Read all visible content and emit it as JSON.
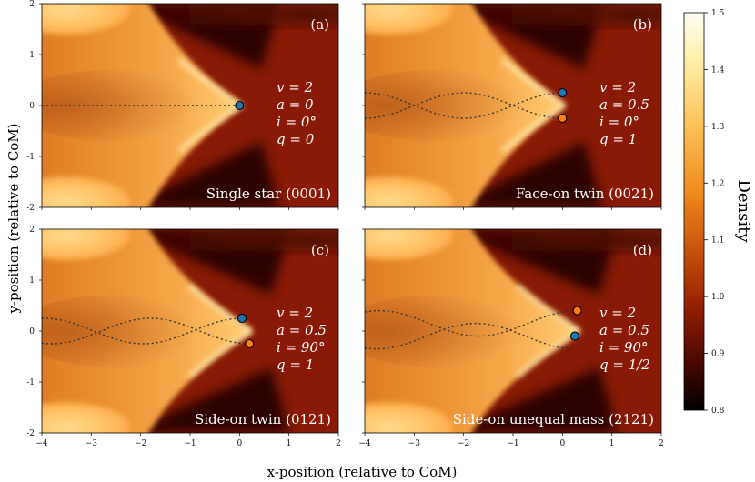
{
  "chart_data": {
    "type": "heatmap",
    "x_label": "x-position (relative to CoM)",
    "y_label": "y-position (relative to CoM)",
    "x_ticks": [
      "−4",
      "−3",
      "−2",
      "−1",
      "0",
      "1",
      "2"
    ],
    "y_ticks": [
      "2",
      "1",
      "0",
      "-1",
      "-2"
    ],
    "xlim": [
      -4,
      2
    ],
    "ylim": [
      -2,
      2
    ],
    "colorbar": {
      "label": "Density",
      "min": 0.8,
      "max": 1.5,
      "ticks": [
        "1.5",
        "1.4",
        "1.3",
        "1.2",
        "1.1",
        "1.0",
        "0.9",
        "0.8"
      ]
    },
    "panels": [
      {
        "letter": "(a)",
        "title": "Single star (0001)",
        "params": [
          "v = 2",
          "a = 0",
          "i = 0°",
          "q = 0"
        ],
        "stars": [
          {
            "x": 0.0,
            "y": 0.0,
            "color": "#1f77b4"
          }
        ],
        "orbits": [
          {
            "x_start": -4,
            "x_end": 0.0,
            "y0": 0.0,
            "amp": 0.0
          }
        ]
      },
      {
        "letter": "(b)",
        "title": "Face-on twin (0021)",
        "params": [
          "v = 2",
          "a = 0.5",
          "i = 0°",
          "q = 1"
        ],
        "stars": [
          {
            "x": 0.0,
            "y": 0.25,
            "color": "#1f77b4"
          },
          {
            "x": 0.0,
            "y": -0.25,
            "color": "#ff7f0e"
          }
        ],
        "orbits": [
          {
            "x_start": -4,
            "x_end": 0.0,
            "y0": 0.0,
            "amp": 0.25
          },
          {
            "x_start": -4,
            "x_end": 0.0,
            "y0": 0.0,
            "amp": -0.25
          }
        ]
      },
      {
        "letter": "(c)",
        "title": "Side-on twin (0121)",
        "params": [
          "v = 2",
          "a = 0.5",
          "i = 90°",
          "q = 1"
        ],
        "stars": [
          {
            "x": 0.05,
            "y": 0.25,
            "color": "#1f77b4"
          },
          {
            "x": 0.2,
            "y": -0.25,
            "color": "#ff7f0e"
          }
        ],
        "orbits": [
          {
            "x_start": -4,
            "x_end": 0.05,
            "y0": 0.0,
            "amp": 0.25
          },
          {
            "x_start": -4,
            "x_end": 0.2,
            "y0": 0.0,
            "amp": -0.25
          }
        ]
      },
      {
        "letter": "(d)",
        "title": "Side-on unequal mass (2121)",
        "params": [
          "v = 2",
          "a = 0.5",
          "i = 90°",
          "q = 1/2"
        ],
        "stars": [
          {
            "x": 0.3,
            "y": 0.4,
            "color": "#ff7f0e"
          },
          {
            "x": 0.25,
            "y": -0.1,
            "color": "#1f77b4"
          }
        ],
        "orbits": [
          {
            "x_start": -4,
            "x_end": 0.3,
            "y0": 0.15,
            "amp": 0.25
          },
          {
            "x_start": -4,
            "x_end": 0.25,
            "y0": -0.1,
            "amp": -0.25
          }
        ]
      }
    ]
  },
  "colors": {
    "ambient": "#8a1a05",
    "dark": "#1c0400",
    "bright": "#ffd27a",
    "peak": "#fff3c0",
    "orbit": "#333333"
  }
}
